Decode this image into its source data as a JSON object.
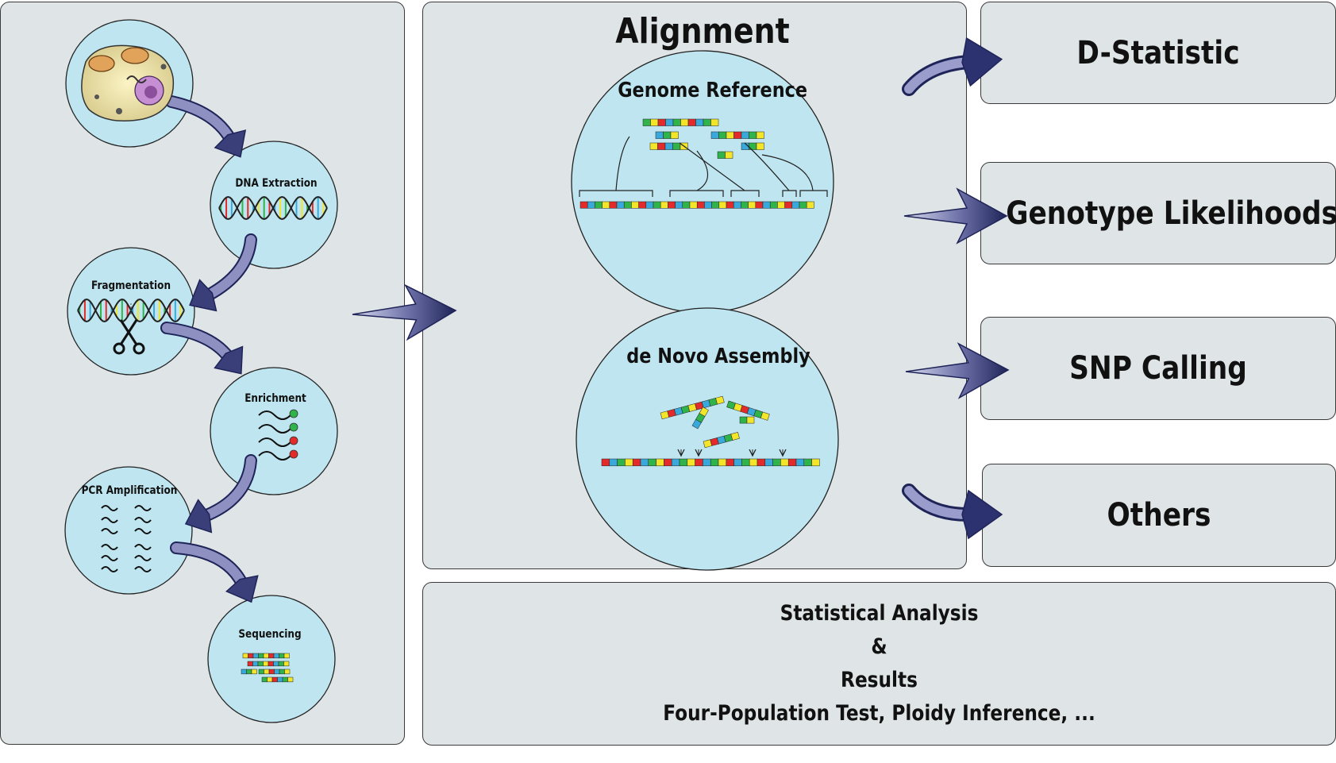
{
  "left_panel": {
    "steps": [
      {
        "id": "cell",
        "label": ""
      },
      {
        "id": "dna-extraction",
        "label": "DNA Extraction"
      },
      {
        "id": "fragmentation",
        "label": "Fragmentation"
      },
      {
        "id": "enrichment",
        "label": "Enrichment"
      },
      {
        "id": "pcr-amplification",
        "label": "PCR Amplification"
      },
      {
        "id": "sequencing",
        "label": "Sequencing"
      }
    ]
  },
  "alignment": {
    "title": "Alignment",
    "genome_reference": "Genome Reference",
    "de_novo": "de Novo Assembly"
  },
  "results": {
    "items": [
      "D-Statistic",
      "Genotype Likelihoods",
      "SNP Calling",
      "Others"
    ]
  },
  "stats": {
    "line1": "Statistical Analysis",
    "line2": "&",
    "line3": "Results",
    "line4": "Four-Population Test, Ploidy Inference, ..."
  },
  "colors": {
    "panel_bg": "#dfe4e6",
    "circle_fill": "#bfe6f0",
    "arrow_dark": "#1f2458",
    "arrow_light": "#cfd2ea",
    "base_red": "#e32b2b",
    "base_green": "#2fb34a",
    "base_yellow": "#f3e62a",
    "base_blue": "#39a9dc"
  }
}
